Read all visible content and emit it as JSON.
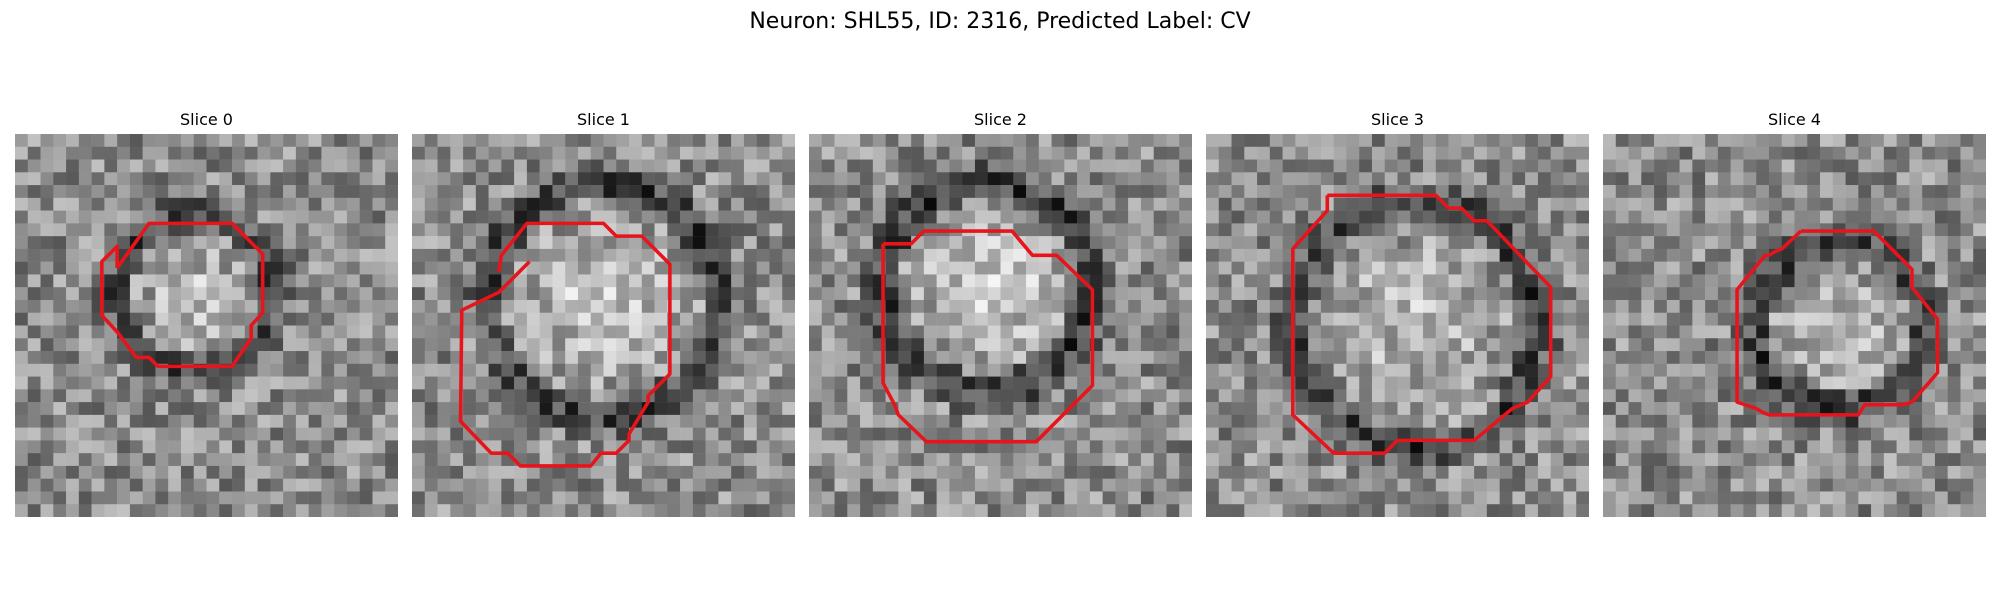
{
  "figure": {
    "title": "Neuron: SHL55, ID: 2316, Predicted Label: CV"
  },
  "contour_color": "#e8141c",
  "slices": [
    {
      "title": "Slice 0"
    },
    {
      "title": "Slice 1"
    },
    {
      "title": "Slice 2"
    },
    {
      "title": "Slice 3"
    },
    {
      "title": "Slice 4"
    }
  ]
}
